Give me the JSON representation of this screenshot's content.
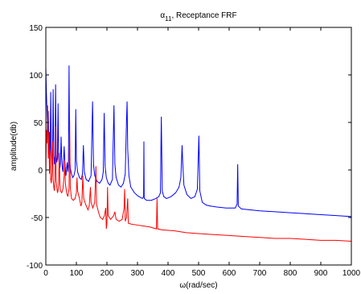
{
  "chart_data": {
    "type": "line",
    "title_symbol": "α",
    "title_subscript": "11",
    "title_rest": ", Receptance FRF",
    "xlabel": "ω(rad/sec)",
    "ylabel": "amplitude(db)",
    "xlim": [
      0,
      1000
    ],
    "ylim": [
      -100,
      150
    ],
    "x_ticks": [
      0,
      100,
      200,
      300,
      400,
      500,
      600,
      700,
      800,
      900,
      1000
    ],
    "y_ticks": [
      -100,
      -50,
      0,
      50,
      100,
      150
    ],
    "grid": false,
    "series": [
      {
        "color": "#0000ff",
        "points": [
          [
            0,
            108
          ],
          [
            2,
            80
          ],
          [
            4,
            60
          ],
          [
            6,
            40
          ],
          [
            8,
            62
          ],
          [
            10,
            25
          ],
          [
            12,
            40
          ],
          [
            14,
            14
          ],
          [
            16,
            82
          ],
          [
            18,
            18
          ],
          [
            20,
            5
          ],
          [
            22,
            14
          ],
          [
            24,
            85
          ],
          [
            26,
            15
          ],
          [
            28,
            6
          ],
          [
            30,
            15
          ],
          [
            32,
            90
          ],
          [
            34,
            16
          ],
          [
            36,
            8
          ],
          [
            38,
            12
          ],
          [
            40,
            70
          ],
          [
            42,
            14
          ],
          [
            44,
            4
          ],
          [
            46,
            2
          ],
          [
            48,
            8
          ],
          [
            50,
            35
          ],
          [
            52,
            12
          ],
          [
            54,
            2
          ],
          [
            56,
            -2
          ],
          [
            58,
            10
          ],
          [
            60,
            25
          ],
          [
            62,
            10
          ],
          [
            64,
            0
          ],
          [
            66,
            -6
          ],
          [
            68,
            2
          ],
          [
            70,
            8
          ],
          [
            72,
            -2
          ],
          [
            74,
            6
          ],
          [
            76,
            110
          ],
          [
            78,
            12
          ],
          [
            80,
            2
          ],
          [
            84,
            -4
          ],
          [
            88,
            -8
          ],
          [
            92,
            -6
          ],
          [
            96,
            0
          ],
          [
            98,
            64
          ],
          [
            100,
            10
          ],
          [
            104,
            -2
          ],
          [
            110,
            -8
          ],
          [
            116,
            -10
          ],
          [
            120,
            -4
          ],
          [
            123,
            26
          ],
          [
            126,
            -2
          ],
          [
            132,
            -10
          ],
          [
            140,
            -12
          ],
          [
            148,
            -6
          ],
          [
            153,
            72
          ],
          [
            156,
            6
          ],
          [
            160,
            -6
          ],
          [
            168,
            -12
          ],
          [
            176,
            -14
          ],
          [
            184,
            -10
          ],
          [
            188,
            -2
          ],
          [
            191,
            60
          ],
          [
            194,
            4
          ],
          [
            198,
            -8
          ],
          [
            204,
            -14
          ],
          [
            210,
            -16
          ],
          [
            218,
            -10
          ],
          [
            223,
            68
          ],
          [
            226,
            6
          ],
          [
            230,
            -8
          ],
          [
            238,
            -16
          ],
          [
            246,
            -18
          ],
          [
            254,
            -14
          ],
          [
            260,
            -4
          ],
          [
            264,
            52
          ],
          [
            266,
            72
          ],
          [
            268,
            22
          ],
          [
            272,
            -6
          ],
          [
            278,
            -18
          ],
          [
            290,
            -24
          ],
          [
            300,
            -27
          ],
          [
            310,
            -29
          ],
          [
            316,
            -30
          ],
          [
            320,
            -28
          ],
          [
            321,
            30
          ],
          [
            322,
            -30
          ],
          [
            330,
            -32
          ],
          [
            345,
            -32
          ],
          [
            360,
            -30
          ],
          [
            370,
            -28
          ],
          [
            375,
            -24
          ],
          [
            378,
            56
          ],
          [
            381,
            -22
          ],
          [
            386,
            -28
          ],
          [
            395,
            -30
          ],
          [
            410,
            -28
          ],
          [
            425,
            -24
          ],
          [
            436,
            -18
          ],
          [
            442,
            -8
          ],
          [
            446,
            26
          ],
          [
            448,
            8
          ],
          [
            452,
            -16
          ],
          [
            462,
            -26
          ],
          [
            475,
            -30
          ],
          [
            488,
            -28
          ],
          [
            496,
            -20
          ],
          [
            501,
            36
          ],
          [
            504,
            -22
          ],
          [
            512,
            -34
          ],
          [
            525,
            -37
          ],
          [
            540,
            -38
          ],
          [
            560,
            -39
          ],
          [
            590,
            -40
          ],
          [
            620,
            -40
          ],
          [
            626,
            -36
          ],
          [
            628,
            6
          ],
          [
            630,
            -38
          ],
          [
            640,
            -41
          ],
          [
            700,
            -43
          ],
          [
            750,
            -44
          ],
          [
            800,
            -45
          ],
          [
            850,
            -46
          ],
          [
            900,
            -47
          ],
          [
            950,
            -48
          ],
          [
            1000,
            -49
          ]
        ]
      },
      {
        "color": "#ff0000",
        "points": [
          [
            0,
            -4
          ],
          [
            2,
            42
          ],
          [
            4,
            28
          ],
          [
            6,
            68
          ],
          [
            8,
            12
          ],
          [
            10,
            40
          ],
          [
            12,
            -4
          ],
          [
            14,
            20
          ],
          [
            16,
            -10
          ],
          [
            18,
            -14
          ],
          [
            20,
            -4
          ],
          [
            22,
            30
          ],
          [
            24,
            -10
          ],
          [
            26,
            -18
          ],
          [
            28,
            -22
          ],
          [
            30,
            -10
          ],
          [
            32,
            46
          ],
          [
            34,
            -12
          ],
          [
            36,
            -18
          ],
          [
            38,
            -24
          ],
          [
            40,
            -22
          ],
          [
            42,
            -14
          ],
          [
            44,
            18
          ],
          [
            46,
            -16
          ],
          [
            48,
            -22
          ],
          [
            52,
            -24
          ],
          [
            56,
            -20
          ],
          [
            60,
            -6
          ],
          [
            62,
            10
          ],
          [
            64,
            -14
          ],
          [
            68,
            -24
          ],
          [
            72,
            -28
          ],
          [
            76,
            -20
          ],
          [
            78,
            52
          ],
          [
            80,
            -18
          ],
          [
            84,
            -30
          ],
          [
            90,
            -32
          ],
          [
            96,
            -30
          ],
          [
            100,
            -24
          ],
          [
            102,
            -8
          ],
          [
            104,
            -22
          ],
          [
            110,
            -30
          ],
          [
            115,
            -38
          ],
          [
            118,
            -34
          ],
          [
            121,
            -6
          ],
          [
            124,
            -30
          ],
          [
            130,
            -36
          ],
          [
            138,
            -42
          ],
          [
            142,
            -38
          ],
          [
            146,
            -18
          ],
          [
            148,
            -34
          ],
          [
            154,
            -40
          ],
          [
            160,
            -34
          ],
          [
            164,
            4
          ],
          [
            166,
            -36
          ],
          [
            172,
            -44
          ],
          [
            178,
            -50
          ],
          [
            186,
            -52
          ],
          [
            192,
            -48
          ],
          [
            196,
            -40
          ],
          [
            198,
            -62
          ],
          [
            200,
            -56
          ],
          [
            202,
            -18
          ],
          [
            204,
            -48
          ],
          [
            212,
            -52
          ],
          [
            222,
            -48
          ],
          [
            226,
            -44
          ],
          [
            230,
            -52
          ],
          [
            240,
            -54
          ],
          [
            250,
            -52
          ],
          [
            256,
            -40
          ],
          [
            258,
            -20
          ],
          [
            260,
            -54
          ],
          [
            264,
            -50
          ],
          [
            268,
            -30
          ],
          [
            270,
            -56
          ],
          [
            280,
            -57
          ],
          [
            300,
            -58
          ],
          [
            320,
            -59
          ],
          [
            340,
            -60
          ],
          [
            362,
            -62
          ],
          [
            364,
            -30
          ],
          [
            366,
            -62
          ],
          [
            380,
            -63
          ],
          [
            420,
            -64
          ],
          [
            460,
            -66
          ],
          [
            500,
            -67
          ],
          [
            550,
            -68
          ],
          [
            600,
            -69
          ],
          [
            650,
            -70
          ],
          [
            700,
            -71
          ],
          [
            750,
            -72
          ],
          [
            800,
            -72
          ],
          [
            850,
            -73
          ],
          [
            900,
            -74
          ],
          [
            950,
            -74
          ],
          [
            1000,
            -75
          ]
        ]
      }
    ]
  }
}
